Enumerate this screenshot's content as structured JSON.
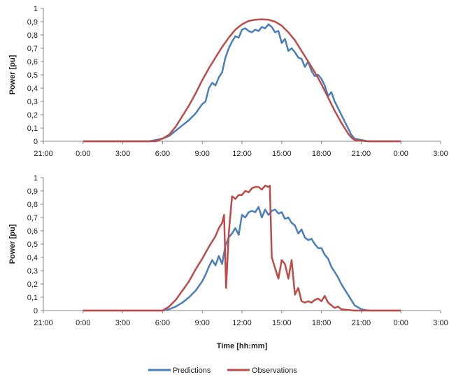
{
  "chart_data": [
    {
      "type": "line",
      "title": "",
      "xlabel": "",
      "ylabel": "Power [pu]",
      "ylim": [
        0,
        1
      ],
      "yticks": [
        "0",
        "0,1",
        "0,2",
        "0,3",
        "0,4",
        "0,5",
        "0,6",
        "0,7",
        "0,8",
        "0,9",
        "1"
      ],
      "xlim": [
        -3,
        27
      ],
      "xticks": [
        "21:00",
        "0:00",
        "3:00",
        "6:00",
        "9:00",
        "12:00",
        "15:00",
        "18:00",
        "21:00",
        "0:00",
        "3:00"
      ],
      "grid": false,
      "series": [
        {
          "name": "Predictions",
          "color": "#4a7ebb",
          "x": [
            0,
            5,
            6,
            6.5,
            7,
            7.5,
            8,
            8.5,
            9,
            9.25,
            9.5,
            9.75,
            10,
            10.25,
            10.5,
            10.75,
            11,
            11.25,
            11.5,
            11.75,
            12,
            12.25,
            12.5,
            12.75,
            13,
            13.25,
            13.5,
            13.75,
            14,
            14.25,
            14.5,
            14.75,
            15,
            15.25,
            15.5,
            15.75,
            16,
            16.25,
            16.5,
            16.75,
            17,
            17.25,
            17.5,
            17.75,
            18,
            18.25,
            18.5,
            18.75,
            19,
            19.25,
            19.5,
            19.75,
            20,
            20.25,
            20.5,
            21,
            21.5,
            24
          ],
          "values": [
            0,
            0,
            0.02,
            0.04,
            0.08,
            0.12,
            0.16,
            0.21,
            0.28,
            0.3,
            0.4,
            0.44,
            0.42,
            0.48,
            0.52,
            0.63,
            0.7,
            0.75,
            0.79,
            0.78,
            0.84,
            0.85,
            0.83,
            0.82,
            0.84,
            0.83,
            0.86,
            0.85,
            0.88,
            0.86,
            0.82,
            0.83,
            0.74,
            0.77,
            0.68,
            0.7,
            0.67,
            0.63,
            0.62,
            0.56,
            0.6,
            0.53,
            0.49,
            0.5,
            0.47,
            0.42,
            0.34,
            0.37,
            0.3,
            0.25,
            0.2,
            0.15,
            0.1,
            0.05,
            0.02,
            0.01,
            0,
            0
          ]
        },
        {
          "name": "Observations",
          "color": "#be4b48",
          "x": [
            0,
            5.5,
            6,
            6.5,
            7,
            7.5,
            8,
            8.5,
            9,
            9.5,
            10,
            10.5,
            11,
            11.5,
            12,
            12.5,
            13,
            13.5,
            14,
            14.5,
            15,
            15.5,
            16,
            16.5,
            17,
            17.5,
            18,
            18.5,
            19,
            19.5,
            20,
            20.25,
            20.5,
            21,
            21.5,
            24
          ],
          "values": [
            0,
            0,
            0.02,
            0.05,
            0.11,
            0.19,
            0.27,
            0.36,
            0.46,
            0.55,
            0.63,
            0.71,
            0.78,
            0.84,
            0.88,
            0.905,
            0.915,
            0.918,
            0.915,
            0.9,
            0.87,
            0.82,
            0.76,
            0.68,
            0.6,
            0.52,
            0.43,
            0.33,
            0.23,
            0.14,
            0.06,
            0.03,
            0.01,
            0.005,
            0,
            0
          ]
        }
      ]
    },
    {
      "type": "line",
      "title": "",
      "xlabel": "Time [hh:mm]",
      "ylabel": "Power [pu]",
      "ylim": [
        0,
        1
      ],
      "yticks": [
        "0",
        "0,1",
        "0,2",
        "0,3",
        "0,4",
        "0,5",
        "0,6",
        "0,7",
        "0,8",
        "0,9",
        "1"
      ],
      "xlim": [
        -3,
        27
      ],
      "xticks": [
        "21:00",
        "0:00",
        "3:00",
        "6:00",
        "9:00",
        "12:00",
        "15:00",
        "18:00",
        "21:00",
        "0:00",
        "3:00"
      ],
      "grid": false,
      "series": [
        {
          "name": "Predictions",
          "color": "#4a7ebb",
          "x": [
            0,
            6,
            6.5,
            7,
            7.5,
            8,
            8.5,
            9,
            9.25,
            9.5,
            9.75,
            10,
            10.25,
            10.5,
            10.75,
            11,
            11.25,
            11.5,
            11.75,
            12,
            12.25,
            12.5,
            12.75,
            13,
            13.25,
            13.5,
            13.75,
            14,
            14.25,
            14.5,
            14.75,
            15,
            15.25,
            15.5,
            15.75,
            16,
            16.25,
            16.5,
            16.75,
            17,
            17.25,
            17.5,
            17.75,
            18,
            18.25,
            18.5,
            18.75,
            19,
            19.25,
            19.5,
            19.75,
            20,
            20.25,
            20.5,
            21,
            21.5,
            24
          ],
          "values": [
            0,
            0,
            0.01,
            0.03,
            0.06,
            0.1,
            0.15,
            0.22,
            0.27,
            0.33,
            0.38,
            0.34,
            0.41,
            0.35,
            0.49,
            0.55,
            0.58,
            0.62,
            0.57,
            0.72,
            0.7,
            0.74,
            0.75,
            0.74,
            0.78,
            0.7,
            0.76,
            0.72,
            0.75,
            0.76,
            0.73,
            0.74,
            0.69,
            0.7,
            0.66,
            0.64,
            0.58,
            0.61,
            0.55,
            0.53,
            0.54,
            0.5,
            0.47,
            0.47,
            0.42,
            0.39,
            0.33,
            0.29,
            0.25,
            0.2,
            0.16,
            0.12,
            0.08,
            0.04,
            0.01,
            0,
            0
          ]
        },
        {
          "name": "Observations",
          "color": "#be4b48",
          "x": [
            0,
            6,
            6.5,
            7,
            7.5,
            8,
            8.5,
            9,
            9.5,
            10,
            10.25,
            10.5,
            10.65,
            10.8,
            11,
            11.25,
            11.5,
            11.75,
            12,
            12.25,
            12.5,
            12.75,
            13,
            13.25,
            13.5,
            13.75,
            14,
            14.1,
            14.25,
            14.5,
            14.75,
            15,
            15.25,
            15.5,
            15.75,
            16,
            16.25,
            16.5,
            16.75,
            17,
            17.25,
            17.5,
            17.75,
            18,
            18.25,
            18.5,
            18.75,
            19,
            19.25,
            19.5,
            20,
            20.5,
            21,
            24
          ],
          "values": [
            0,
            0,
            0.03,
            0.08,
            0.15,
            0.22,
            0.31,
            0.39,
            0.48,
            0.56,
            0.62,
            0.66,
            0.72,
            0.17,
            0.58,
            0.86,
            0.84,
            0.87,
            0.87,
            0.9,
            0.89,
            0.92,
            0.93,
            0.93,
            0.91,
            0.94,
            0.93,
            0.94,
            0.4,
            0.32,
            0.24,
            0.38,
            0.35,
            0.24,
            0.38,
            0.12,
            0.17,
            0.07,
            0.06,
            0.07,
            0.06,
            0.08,
            0.09,
            0.07,
            0.11,
            0.06,
            0.04,
            0.02,
            0.03,
            0.01,
            0.005,
            0,
            0,
            0
          ]
        }
      ]
    }
  ],
  "legend": {
    "position": "bottom-center",
    "items": [
      {
        "label": "Predictions",
        "color": "#4a7ebb"
      },
      {
        "label": "Observations",
        "color": "#be4b48"
      }
    ]
  }
}
